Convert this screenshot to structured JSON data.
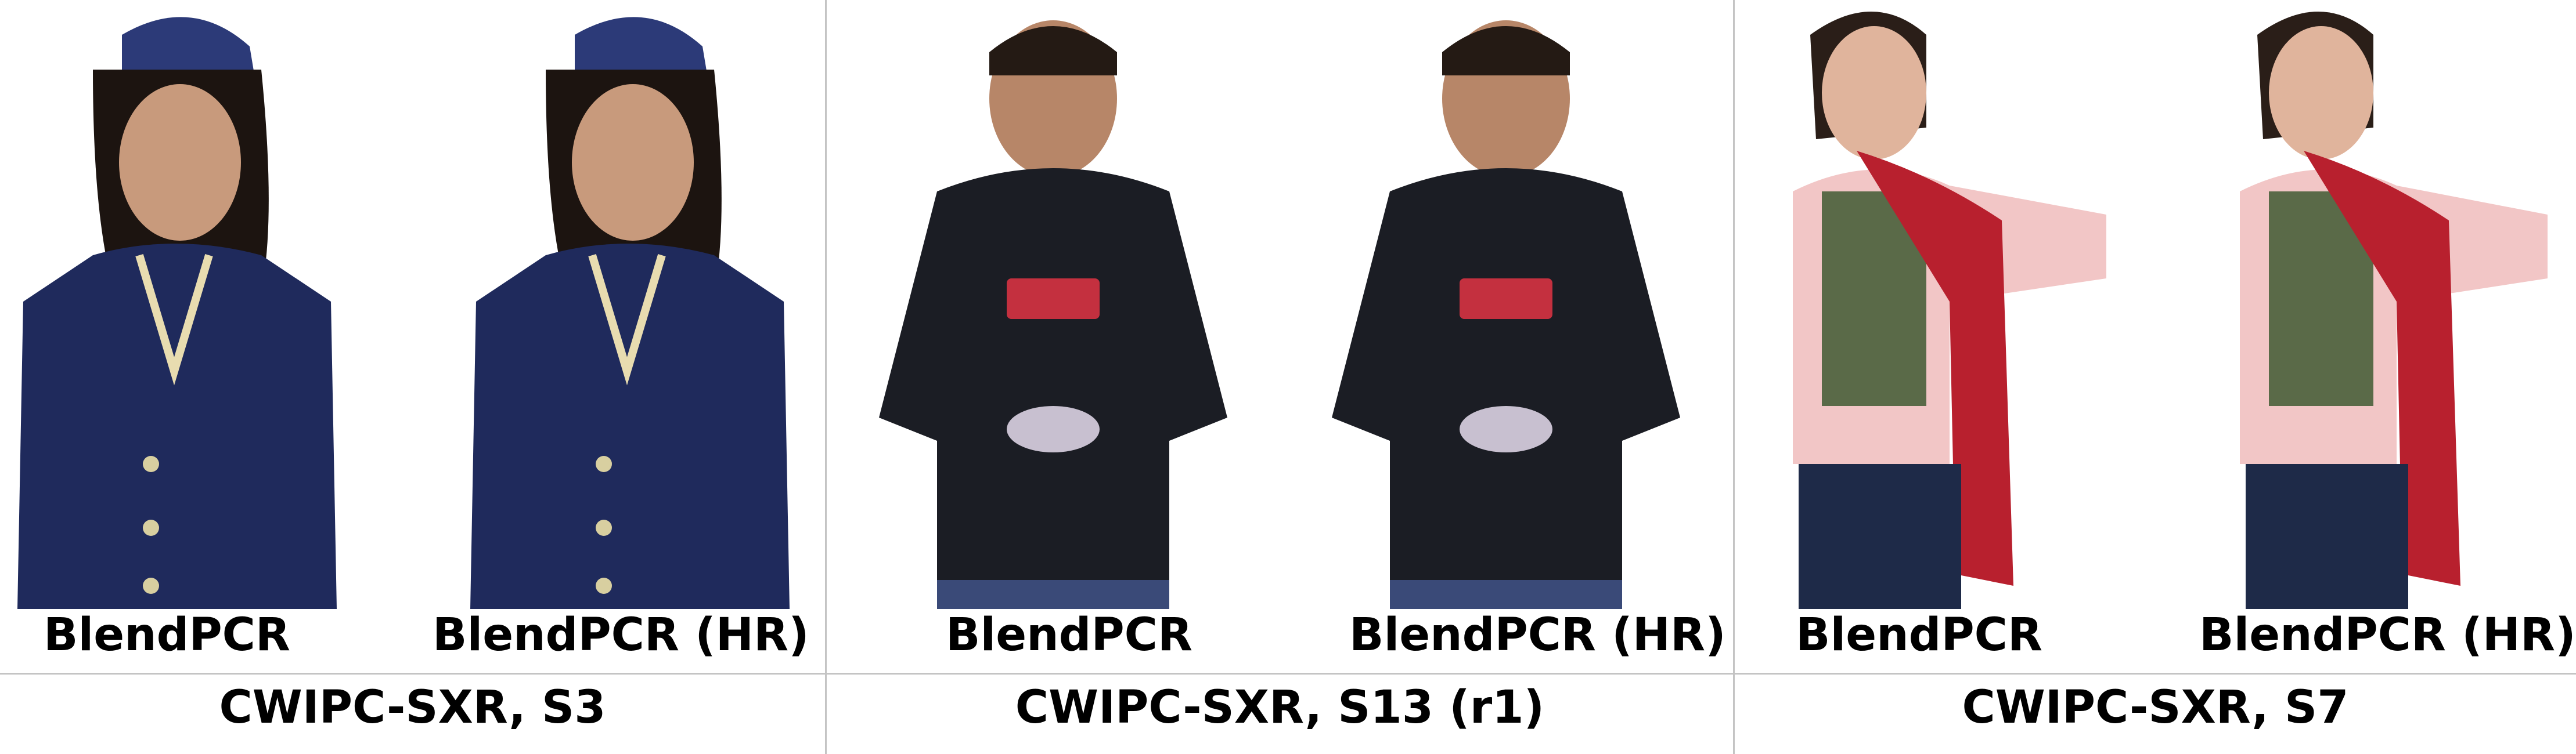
{
  "panels": [
    {
      "caption": "CWIPC-SXR, S3",
      "left_label": "BlendPCR",
      "right_label": "BlendPCR (HR)",
      "subject": "person-in-navy-uniform"
    },
    {
      "caption": "CWIPC-SXR, S13 (r1)",
      "left_label": "BlendPCR",
      "right_label": "BlendPCR (HR)",
      "subject": "person-in-black-hoodie"
    },
    {
      "caption": "CWIPC-SXR, S7",
      "left_label": "BlendPCR",
      "right_label": "BlendPCR (HR)",
      "subject": "person-with-red-scarf"
    }
  ],
  "colors": {
    "divider": "#c4c4c4",
    "navy_uniform": "#1f2a5c",
    "black_hoodie": "#1b1d24",
    "pink_shirt": "#f2c6c6",
    "red_scarf": "#b8202e",
    "skin": "#c89a7c"
  }
}
